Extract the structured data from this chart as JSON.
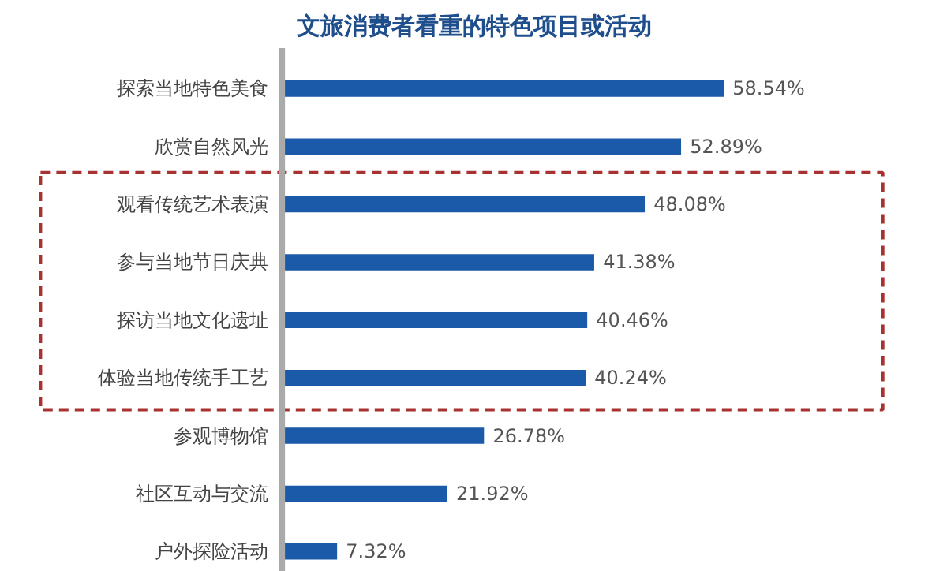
{
  "chart_data": {
    "type": "bar",
    "orientation": "horizontal",
    "title": "文旅消费者看重的特色项目或活动",
    "categories": [
      "探索当地特色美食",
      "欣赏自然风光",
      "观看传统艺术表演",
      "参与当地节日庆典",
      "探访当地文化遗址",
      "体验当地传统手工艺",
      "参观博物馆",
      "社区互动与交流",
      "户外探险活动"
    ],
    "values": [
      58.54,
      52.89,
      48.08,
      41.38,
      40.46,
      40.24,
      26.78,
      21.92,
      7.32
    ],
    "value_labels": [
      "58.54%",
      "52.89%",
      "48.08%",
      "41.38%",
      "40.46%",
      "40.24%",
      "26.78%",
      "21.92%",
      "7.32%"
    ],
    "color": "#1a5aa8"
  }
}
